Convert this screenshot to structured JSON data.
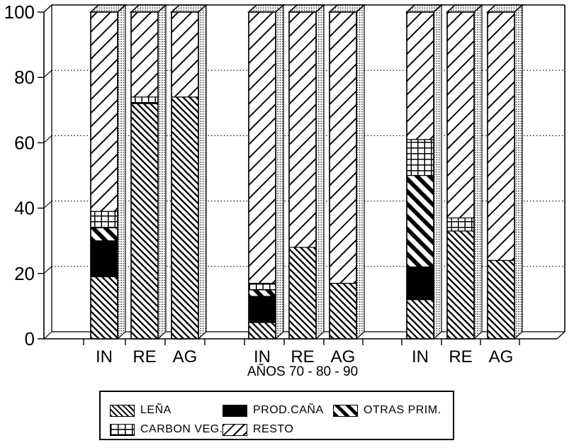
{
  "figure": {
    "background": "#ffffff",
    "ink": "#000000",
    "style": "monochrome 3D stacked bar chart, hatched patterns, scanned document look"
  },
  "chart_data": {
    "type": "bar",
    "stacked": true,
    "ylim": [
      0,
      100
    ],
    "y_ticks": [
      0,
      20,
      40,
      60,
      80,
      100
    ],
    "grid": "dotted horizontal gridlines at 20/40/60/80 on back wall",
    "legend_position": "bottom",
    "xlabel": "AÑOS 70 - 80 - 90",
    "groups": [
      "70",
      "80",
      "90"
    ],
    "categories": [
      "IN",
      "RE",
      "AG"
    ],
    "bar_order": [
      "70-IN",
      "70-RE",
      "70-AG",
      "80-IN",
      "80-RE",
      "80-AG",
      "90-IN",
      "90-RE",
      "90-AG"
    ],
    "series": [
      {
        "name": "LEÑA",
        "pattern": "lena",
        "values": [
          19,
          72,
          74,
          5,
          28,
          17,
          12,
          33,
          24
        ]
      },
      {
        "name": "PROD.CAÑA",
        "pattern": "solid",
        "values": [
          11,
          0,
          0,
          8,
          0,
          0,
          10,
          0,
          0
        ]
      },
      {
        "name": "OTRAS PRIM.",
        "pattern": "otras",
        "values": [
          4,
          0,
          0,
          2,
          0,
          0,
          28,
          0,
          0
        ]
      },
      {
        "name": "CARBON VEG.",
        "pattern": "carbon",
        "values": [
          5,
          2,
          0,
          2,
          0,
          0,
          11,
          4,
          0
        ]
      },
      {
        "name": "RESTO",
        "pattern": "resto",
        "values": [
          61,
          26,
          26,
          83,
          72,
          83,
          39,
          63,
          76
        ]
      }
    ]
  },
  "legend": {
    "items": [
      {
        "label": "LEÑA",
        "pattern": "lena"
      },
      {
        "label": "PROD.CAÑA",
        "pattern": "solid"
      },
      {
        "label": "OTRAS PRIM.",
        "pattern": "otras"
      },
      {
        "label": "CARBON VEG.",
        "pattern": "carbon"
      },
      {
        "label": "RESTO",
        "pattern": "resto"
      }
    ]
  }
}
